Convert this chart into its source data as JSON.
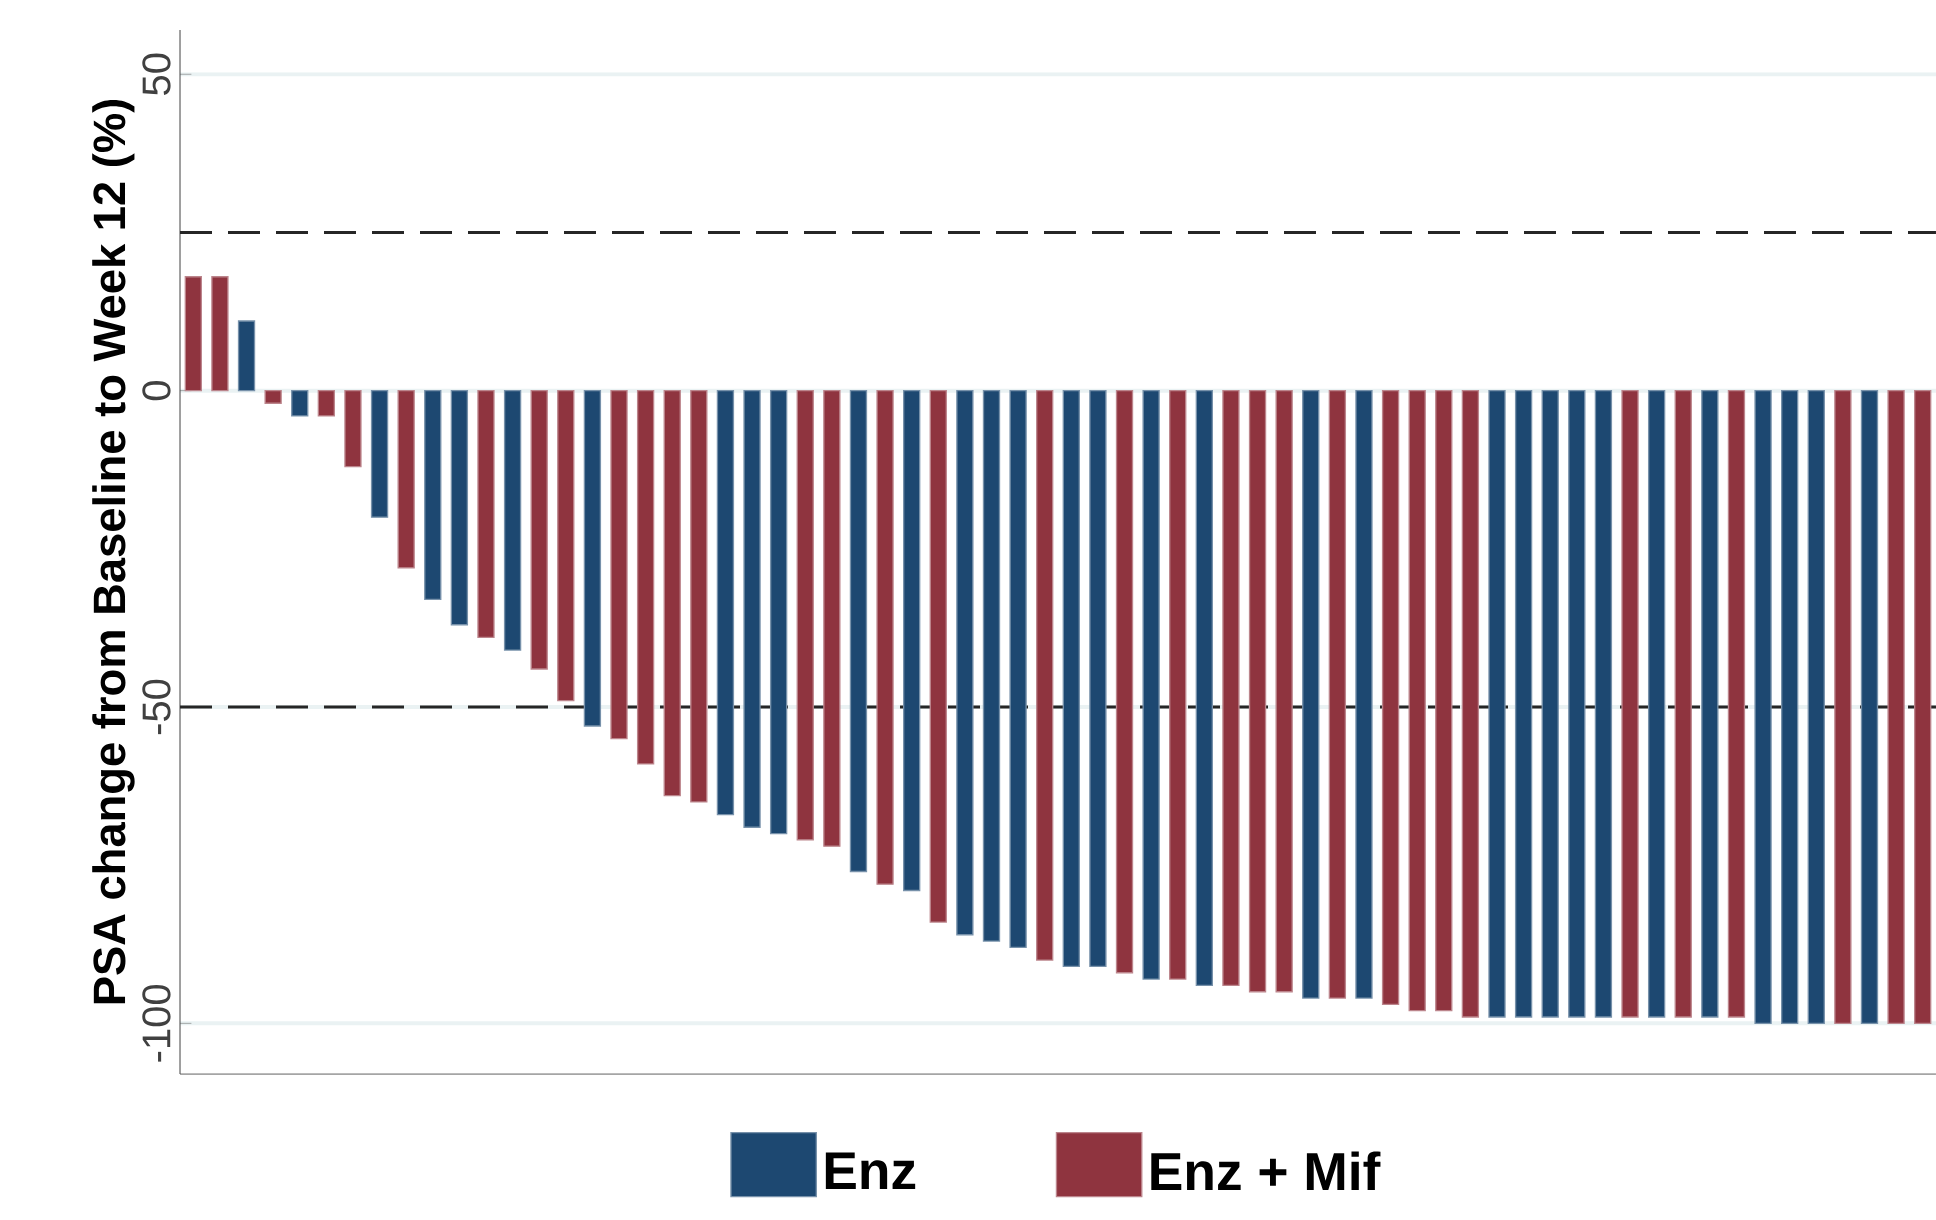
{
  "chart_data": {
    "type": "bar",
    "ylabel": "PSA change from Baseline to Week 12 (%)",
    "categories": [
      null,
      null,
      null,
      null,
      null,
      null,
      null,
      null,
      null,
      null,
      null,
      null,
      null,
      null,
      null,
      null,
      null,
      null,
      null,
      null,
      null,
      null,
      null,
      null,
      null,
      null,
      null,
      null,
      null,
      null,
      null,
      null,
      null,
      null,
      null,
      null,
      null,
      null,
      null,
      null,
      null,
      null,
      null,
      null,
      null,
      null,
      null,
      null,
      null,
      null,
      null,
      null,
      null,
      null,
      null,
      null,
      null,
      null,
      null,
      null,
      null,
      null,
      null,
      null,
      null,
      null
    ],
    "series": [
      {
        "name": "Enz",
        "color": "#1d4871",
        "values": [
          null,
          null,
          11,
          null,
          -4,
          null,
          null,
          -20,
          null,
          -33,
          -37,
          null,
          -41,
          null,
          null,
          -53,
          null,
          null,
          null,
          null,
          -67,
          -69,
          -70,
          null,
          null,
          -76,
          null,
          -79,
          null,
          -86,
          -87,
          -88,
          null,
          -91,
          -91,
          null,
          -93,
          null,
          -94,
          null,
          null,
          null,
          -96,
          null,
          -96,
          null,
          null,
          null,
          null,
          -99,
          -99,
          -99,
          -99,
          -99,
          null,
          -99,
          null,
          -99,
          null,
          -100,
          -100,
          -100,
          null,
          -100,
          null,
          null
        ]
      },
      {
        "name": "Enz + Mif",
        "color": "#8f343f",
        "values": [
          18,
          18,
          null,
          -2,
          null,
          -4,
          -12,
          null,
          -28,
          null,
          null,
          -39,
          null,
          -44,
          -49,
          null,
          -55,
          -59,
          -64,
          -65,
          null,
          null,
          null,
          -71,
          -72,
          null,
          -78,
          null,
          -84,
          null,
          null,
          null,
          -90,
          null,
          null,
          -92,
          null,
          -93,
          null,
          -94,
          -95,
          -95,
          null,
          -96,
          null,
          -97,
          -98,
          -98,
          -99,
          null,
          null,
          null,
          null,
          null,
          -99,
          null,
          -99,
          null,
          -99,
          null,
          null,
          null,
          -100,
          null,
          -100,
          -100
        ]
      }
    ],
    "stacked": true,
    "ylim": [
      -108,
      57
    ],
    "yticks": [
      -100,
      -50,
      0,
      50
    ],
    "grid": "y",
    "legend": "bottom",
    "ref_lines": [
      {
        "axis": "y",
        "value": 25,
        "line_style": "dashed"
      },
      {
        "axis": "y",
        "value": -50,
        "line_style": "dashed"
      }
    ]
  }
}
